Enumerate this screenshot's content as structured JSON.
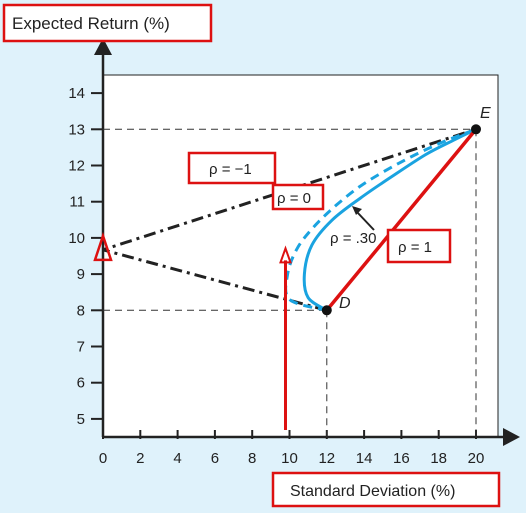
{
  "chart_data": {
    "type": "line",
    "ylabel": "Expected Return (%)",
    "xlabel": "Standard Deviation (%)",
    "xlim": [
      0,
      20
    ],
    "ylim": [
      4.5,
      14.5
    ],
    "xticks": [
      0,
      2,
      4,
      6,
      8,
      10,
      12,
      14,
      16,
      18,
      20
    ],
    "yticks": [
      5,
      6,
      7,
      8,
      9,
      10,
      11,
      12,
      13,
      14
    ],
    "points": [
      {
        "label": "E",
        "x": 20,
        "y": 13
      },
      {
        "label": "D",
        "x": 12,
        "y": 8
      }
    ],
    "series": [
      {
        "name": "ρ = −1",
        "style": "dash-dot",
        "color": "#222222",
        "x": [
          12,
          0,
          20
        ],
        "y": [
          8,
          9.67,
          13
        ]
      },
      {
        "name": "ρ = 0",
        "style": "dashed",
        "color": "#1aa3e0",
        "x": [
          12,
          10.0,
          9.9,
          10.4,
          11.3,
          12.5,
          14.0,
          16.0,
          18.0,
          20.0
        ],
        "y": [
          8,
          8.3,
          9.0,
          9.7,
          10.3,
          10.9,
          11.5,
          12.1,
          12.6,
          13.0
        ]
      },
      {
        "name": "ρ = .30",
        "style": "solid",
        "color": "#1aa3e0",
        "x": [
          12,
          11.0,
          10.8,
          11.2,
          12.3,
          13.8,
          15.5,
          17.3,
          18.8,
          20.0
        ],
        "y": [
          8,
          8.35,
          9.0,
          9.8,
          10.5,
          11.1,
          11.7,
          12.3,
          12.7,
          13.0
        ]
      },
      {
        "name": "ρ = 1",
        "style": "solid",
        "color": "#dd1111",
        "x": [
          12,
          20
        ],
        "y": [
          8,
          13
        ]
      }
    ],
    "annotations": {
      "rho_neg1": "ρ = −1",
      "rho_0": "ρ = 0",
      "rho_030": "ρ = .30",
      "rho_1": "ρ = 1"
    },
    "markers": {
      "min_var_x": 0,
      "min_var_y": 9.67,
      "red_line_x": 10,
      "red_line_top_y": 9.6
    },
    "colors": {
      "background": "#dff2fb",
      "highlight_box": "#dd1111",
      "curve": "#1aa3e0",
      "axis": "#222222"
    }
  }
}
